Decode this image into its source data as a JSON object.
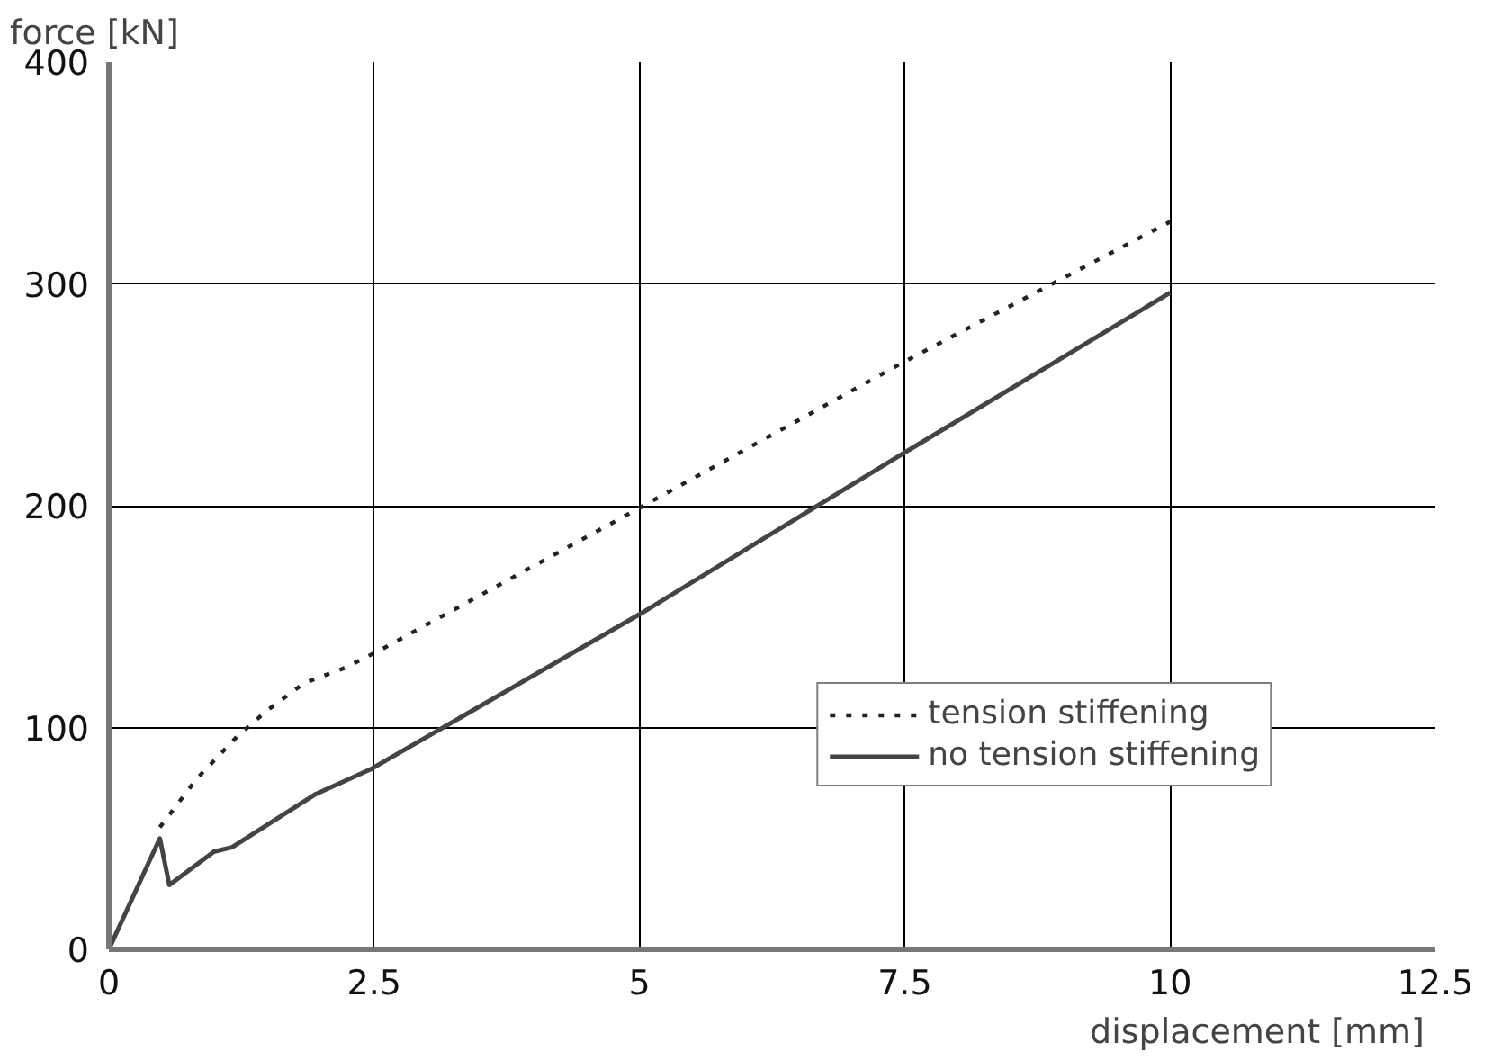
{
  "chart_data": {
    "type": "line",
    "xlabel": "displacement  [mm]",
    "ylabel": "force  [kN]",
    "xlim": [
      0,
      12.5
    ],
    "ylim": [
      0,
      400
    ],
    "xticks": [
      0,
      2.5,
      5,
      7.5,
      10,
      12.5
    ],
    "yticks": [
      0,
      100,
      200,
      300,
      400
    ],
    "grid": true,
    "legend": "bottom right",
    "series": [
      {
        "name": "tension stiffening",
        "color": "#222222",
        "line_style": "dotted",
        "x": [
          0.48,
          0.83,
          1.21,
          1.5,
          1.84,
          2.23,
          2.6,
          5,
          7.5,
          10
        ],
        "values": [
          55,
          77,
          96,
          108,
          120,
          127,
          136,
          199,
          265,
          328
        ]
      },
      {
        "name": "no tension stiffening",
        "color": "#444444",
        "line_style": "solid",
        "x": [
          0,
          0.48,
          0.57,
          0.99,
          1.16,
          1.95,
          2.46,
          5,
          7.5,
          10
        ],
        "values": [
          0,
          50,
          29,
          44,
          46,
          70,
          81,
          151,
          224,
          296
        ]
      }
    ]
  }
}
